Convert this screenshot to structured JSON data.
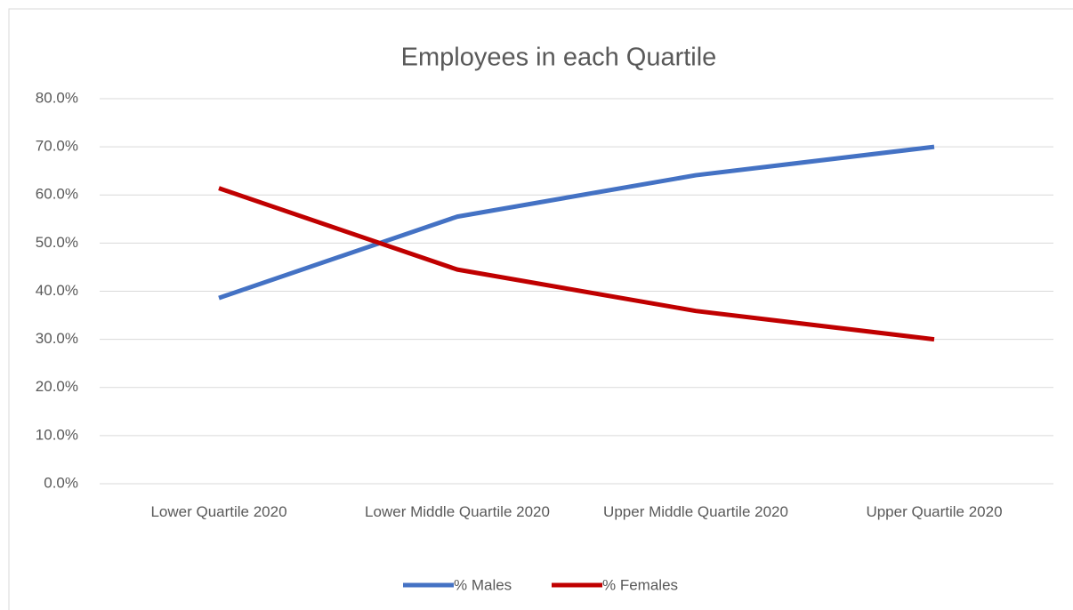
{
  "chart_data": {
    "type": "line",
    "title": "Employees in each Quartile",
    "categories": [
      "Lower Quartile 2020",
      "Lower Middle Quartile 2020",
      "Upper Middle Quartile 2020",
      "Upper Quartile 2020"
    ],
    "series": [
      {
        "name": "% Males",
        "color": "#4472c4",
        "values": [
          38.6,
          55.5,
          64.1,
          70.0
        ]
      },
      {
        "name": "% Females",
        "color": "#c00000",
        "values": [
          61.4,
          44.5,
          35.9,
          30.0
        ]
      }
    ],
    "ylim": [
      0,
      80
    ],
    "yticks": [
      {
        "value": 0,
        "label": "0.0%"
      },
      {
        "value": 10,
        "label": "10.0%"
      },
      {
        "value": 20,
        "label": "20.0%"
      },
      {
        "value": 30,
        "label": "30.0%"
      },
      {
        "value": 40,
        "label": "40.0%"
      },
      {
        "value": 50,
        "label": "50.0%"
      },
      {
        "value": 60,
        "label": "60.0%"
      },
      {
        "value": 70,
        "label": "70.0%"
      },
      {
        "value": 80,
        "label": "80.0%"
      }
    ],
    "grid": true,
    "legend": "bottom"
  }
}
